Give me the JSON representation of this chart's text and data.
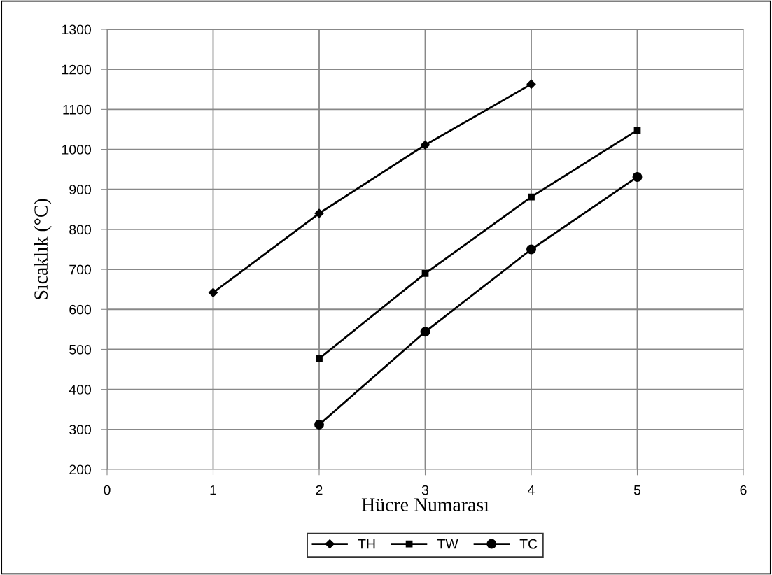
{
  "chart_data": {
    "type": "line",
    "xlabel": "Hücre Numarası",
    "ylabel": "Sıcaklık (°C)",
    "xlim": [
      0,
      6
    ],
    "xticks": [
      0,
      1,
      2,
      3,
      4,
      5,
      6
    ],
    "ylim": [
      200,
      1300
    ],
    "yticks": [
      200,
      300,
      400,
      500,
      600,
      700,
      800,
      900,
      1000,
      1100,
      1200,
      1300
    ],
    "grid": true,
    "legend": "bottom",
    "line_style": "solid",
    "series": [
      {
        "name": "TH",
        "color": "#000000",
        "marker": "diamond",
        "x": [
          1,
          2,
          3,
          4
        ],
        "values": [
          642,
          840,
          1011,
          1163
        ]
      },
      {
        "name": "TW",
        "color": "#000000",
        "marker": "square",
        "x": [
          2,
          3,
          4,
          5
        ],
        "values": [
          477,
          690,
          881,
          1048
        ]
      },
      {
        "name": "TC",
        "color": "#000000",
        "marker": "circle",
        "x": [
          2,
          3,
          4,
          5
        ],
        "values": [
          312,
          544,
          750,
          931
        ]
      }
    ]
  }
}
